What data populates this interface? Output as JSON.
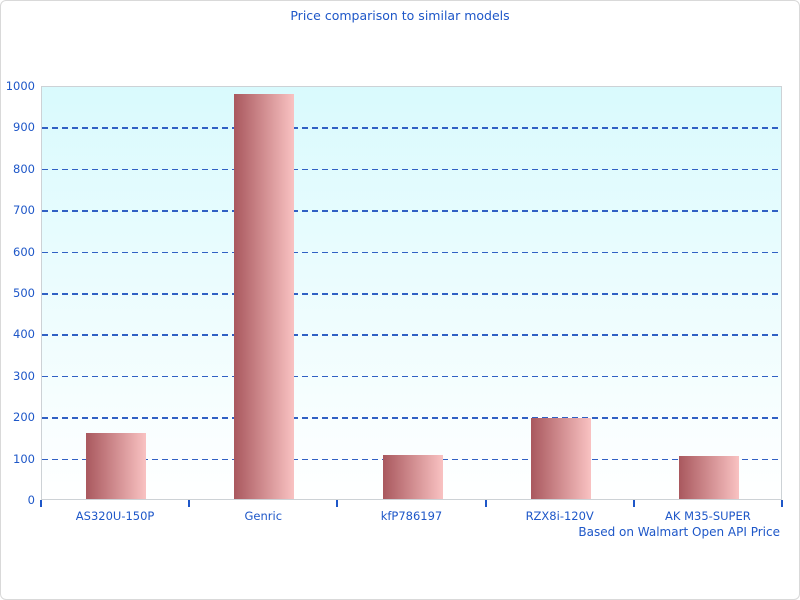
{
  "chart_data": {
    "type": "bar",
    "title": "Price comparison to similar models",
    "subtitle": "Based on Walmart Open API Price",
    "categories": [
      "AS320U-150P",
      "Genric",
      "kfP786197",
      "RZX8i-120V",
      "AK M35-SUPER"
    ],
    "values": [
      160,
      978,
      107,
      196,
      105
    ],
    "xlabel": "",
    "ylabel": "",
    "ylim": [
      0,
      1000
    ],
    "ytick_step": 100,
    "grid": "horizontal-dashed",
    "legend": "none",
    "colors": {
      "title_text": "#1e57c8",
      "axis_text": "#1e57c8",
      "gridline": "#3060c4",
      "bar_gradient_left": "#a9585e",
      "bar_gradient_right": "#f9c2c2",
      "plot_bg_top": "#d9fafd",
      "plot_bg_bottom": "#ffffff",
      "plot_border": "#cdd2d6",
      "canvas_border": "#d9d9d9"
    }
  }
}
